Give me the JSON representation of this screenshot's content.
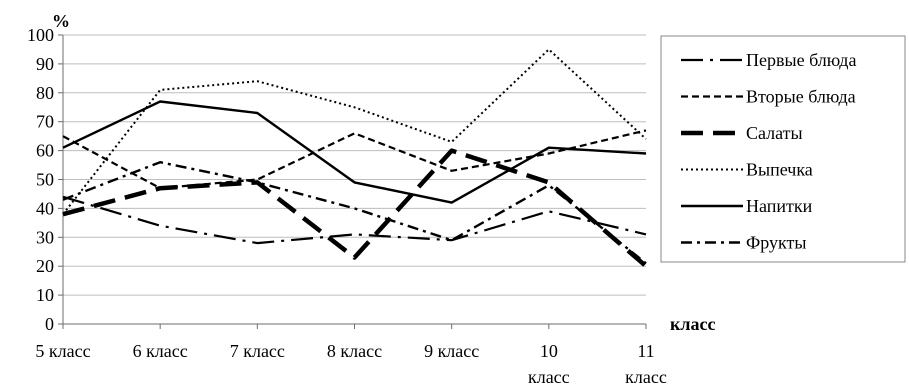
{
  "chart_data": {
    "type": "line",
    "title": "",
    "ylabel": "%",
    "xlabel": "класс",
    "ylim": [
      0,
      100
    ],
    "yticks": [
      0,
      10,
      20,
      30,
      40,
      50,
      60,
      70,
      80,
      90,
      100
    ],
    "categories": [
      [
        "5 класс"
      ],
      [
        "6 класс"
      ],
      [
        "7 класс"
      ],
      [
        "8 класс"
      ],
      [
        "9 класс"
      ],
      [
        "10",
        "класс"
      ],
      [
        "11",
        "класс"
      ]
    ],
    "grid": true,
    "legend_position": "right",
    "series": [
      {
        "name": "Первые блюда",
        "style": "long-dash-dot",
        "values": [
          44,
          34,
          28,
          31,
          29,
          39,
          31
        ]
      },
      {
        "name": "Вторые блюда",
        "style": "short-dash",
        "values": [
          65,
          47,
          50,
          66,
          53,
          59,
          67
        ]
      },
      {
        "name": "Салаты",
        "style": "thick-dash",
        "values": [
          38,
          47,
          49,
          23,
          60,
          49,
          20
        ]
      },
      {
        "name": "Выпечка",
        "style": "dotted",
        "values": [
          38,
          81,
          84,
          75,
          63,
          95,
          64
        ]
      },
      {
        "name": "Напитки",
        "style": "solid",
        "values": [
          61,
          77,
          73,
          49,
          42,
          61,
          59
        ]
      },
      {
        "name": "Фрукты",
        "style": "dash-dot",
        "values": [
          43,
          56,
          49,
          40,
          29,
          48,
          21
        ]
      }
    ]
  }
}
